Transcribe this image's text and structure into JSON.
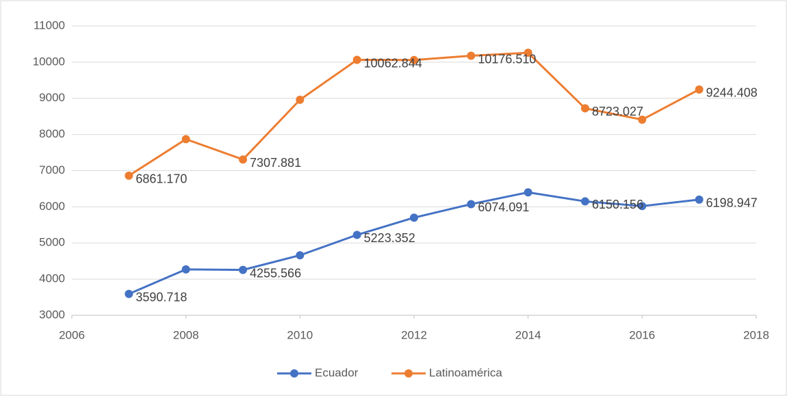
{
  "chart_data": {
    "type": "line",
    "x": [
      2007,
      2008,
      2009,
      2010,
      2011,
      2012,
      2013,
      2014,
      2015,
      2016,
      2017
    ],
    "series": [
      {
        "name": "Ecuador",
        "color": "#4472c4",
        "values": [
          3590.718,
          4270,
          4255.566,
          4660,
          5223.352,
          5700,
          6074.091,
          6400,
          6150.156,
          6020,
          6198.947
        ],
        "value_labels": [
          "3590.718",
          null,
          "4255.566",
          null,
          "5223.352",
          null,
          "6074.091",
          null,
          "6150.156",
          null,
          "6198.947"
        ]
      },
      {
        "name": "Latinoamérica",
        "color": "#ed7d31",
        "values": [
          6861.17,
          7870,
          7307.881,
          8960,
          10062.844,
          10060,
          10176.51,
          10260,
          8723.027,
          8410,
          9244.408
        ],
        "value_labels": [
          "6861.170",
          null,
          "7307.881",
          null,
          "10062.844",
          null,
          "10176.510",
          null,
          "8723.027",
          null,
          "9244.408"
        ]
      }
    ],
    "xlim": [
      2006,
      2018
    ],
    "xticks": [
      2006,
      2008,
      2010,
      2012,
      2014,
      2016,
      2018
    ],
    "ylim": [
      3000,
      11000
    ],
    "yticks": [
      3000,
      4000,
      5000,
      6000,
      7000,
      8000,
      9000,
      10000,
      11000
    ],
    "grid": true,
    "legend": "bottom"
  }
}
